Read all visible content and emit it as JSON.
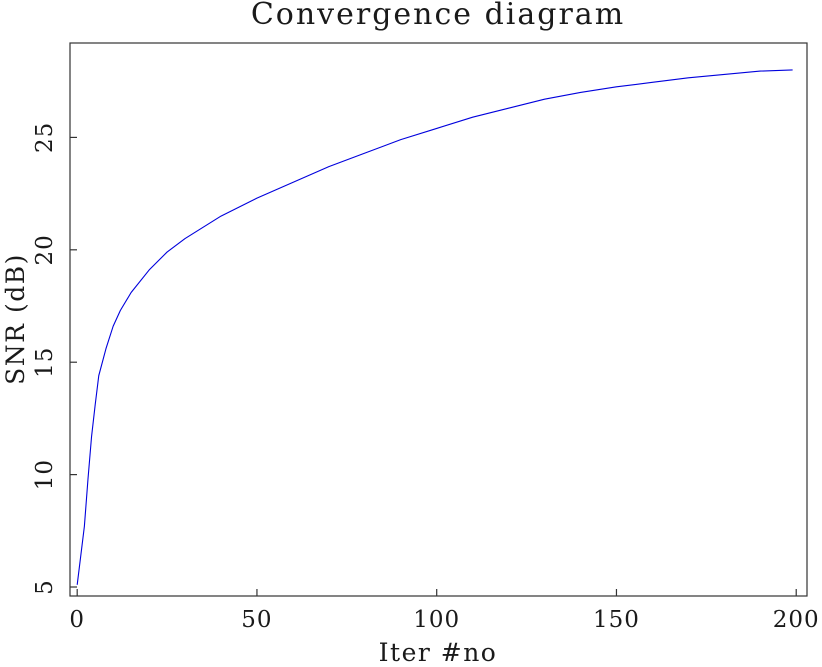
{
  "chart_data": {
    "type": "line",
    "title": "Convergence diagram",
    "xlabel": "Iter #no",
    "ylabel": "SNR (dB)",
    "xlim": [
      -2,
      203
    ],
    "ylim": [
      4.6,
      29.2
    ],
    "xticks": [
      0,
      50,
      100,
      150,
      200
    ],
    "yticks": [
      5,
      10,
      15,
      20,
      25
    ],
    "grid": false,
    "legend": "none",
    "colors": {
      "line": "#0000dd",
      "frame": "#333333"
    },
    "series": [
      {
        "x": [
          0,
          1,
          2,
          3,
          4,
          5,
          6,
          8,
          10,
          12,
          15,
          20,
          25,
          30,
          40,
          50,
          60,
          70,
          80,
          90,
          100,
          110,
          120,
          130,
          140,
          150,
          160,
          170,
          180,
          190,
          199
        ],
        "values": [
          5.1,
          6.4,
          7.7,
          9.8,
          11.7,
          13.1,
          14.4,
          15.6,
          16.6,
          17.3,
          18.1,
          19.1,
          19.9,
          20.5,
          21.5,
          22.3,
          23.0,
          23.7,
          24.3,
          24.9,
          25.4,
          25.9,
          26.3,
          26.7,
          27.0,
          27.25,
          27.45,
          27.65,
          27.8,
          27.95,
          28.0
        ]
      }
    ]
  }
}
